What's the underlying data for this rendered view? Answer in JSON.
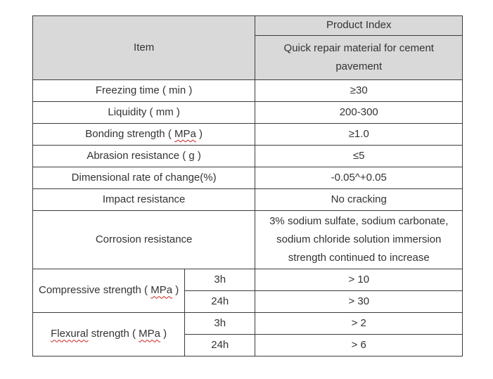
{
  "colors": {
    "header_bg": "#d9d9d9",
    "border": "#3c3c3c",
    "text": "#333333",
    "squiggle": "#cc2222"
  },
  "table": {
    "header": {
      "item_label": "Item",
      "product_index_label": "Product Index",
      "product_name": "Quick repair material for cement pavement"
    },
    "rows": [
      {
        "label": "Freezing time ( min )",
        "value": "≥30"
      },
      {
        "label": "Liquidity ( mm )",
        "value": "200-300"
      },
      {
        "label_parts": [
          "Bonding strength ( ",
          "MPa",
          " )"
        ],
        "value": "≥1.0"
      },
      {
        "label": "Abrasion resistance ( g )",
        "value": "≤5"
      },
      {
        "label": "Dimensional rate of change(%)",
        "value": "-0.05^+0.05"
      },
      {
        "label": "Impact resistance",
        "value": "No cracking"
      },
      {
        "label": "Corrosion resistance",
        "value": "3% sodium sulfate, sodium carbonate, sodium chloride solution immersion strength continued to increase"
      }
    ],
    "grouped_rows": [
      {
        "label_parts": [
          "Compressive strength ( ",
          "MPa",
          " )"
        ],
        "sub_rows": [
          {
            "time": "3h",
            "value": "> 10"
          },
          {
            "time": "24h",
            "value": "> 30"
          }
        ]
      },
      {
        "label_parts": [
          "Flexural",
          " strength ( ",
          "MPa",
          " )"
        ],
        "sub_rows": [
          {
            "time": "3h",
            "value": "> 2"
          },
          {
            "time": "24h",
            "value": "> 6"
          }
        ]
      }
    ]
  }
}
